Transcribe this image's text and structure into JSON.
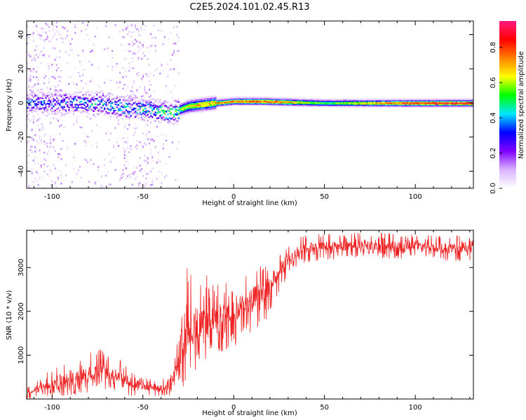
{
  "title": "C2E5.2024.101.02.45.R13",
  "chart_data": [
    {
      "type": "heatmap",
      "xlabel": "Height of straight line (km)",
      "ylabel": "Frequency (Hz)",
      "xlim": [
        -114,
        132
      ],
      "ylim": [
        -50,
        48
      ],
      "x_ticks": [
        -100,
        -50,
        0,
        50,
        100
      ],
      "y_ticks": [
        -40,
        -20,
        0,
        20,
        40
      ],
      "colorbar": {
        "label": "Normalized spectral amplitude",
        "range": [
          0,
          0.95
        ],
        "ticks": [
          0.0,
          0.2,
          0.4,
          0.6,
          0.8
        ],
        "colormap": [
          "#ffffff",
          "#d9b3ff",
          "#8000ff",
          "#0000ff",
          "#00e6ff",
          "#00ff00",
          "#ffff00",
          "#ff8000",
          "#ff0000",
          "#ff1a80"
        ]
      },
      "ridge_frequency_hz": [
        {
          "x": -100,
          "y": 0
        },
        {
          "x": -75,
          "y": 0
        },
        {
          "x": -60,
          "y": -3
        },
        {
          "x": -45,
          "y": -4
        },
        {
          "x": -35,
          "y": -6
        },
        {
          "x": -25,
          "y": -2
        },
        {
          "x": -10,
          "y": 0
        },
        {
          "x": 0,
          "y": 1
        },
        {
          "x": 15,
          "y": 1
        },
        {
          "x": 50,
          "y": 0
        },
        {
          "x": 100,
          "y": 0
        },
        {
          "x": 130,
          "y": 0
        }
      ],
      "ridge_amplitude": [
        {
          "x": -100,
          "y": 0.35
        },
        {
          "x": -60,
          "y": 0.4
        },
        {
          "x": -40,
          "y": 0.45
        },
        {
          "x": -20,
          "y": 0.7
        },
        {
          "x": 0,
          "y": 0.8
        },
        {
          "x": 20,
          "y": 0.85
        },
        {
          "x": 50,
          "y": 0.55
        },
        {
          "x": 100,
          "y": 0.85
        },
        {
          "x": 130,
          "y": 0.9
        }
      ]
    },
    {
      "type": "line",
      "xlabel": "Height of straight line (km)",
      "ylabel": "SNR (10 * v/v)",
      "xlim": [
        -114,
        132
      ],
      "ylim": [
        0,
        3850
      ],
      "x_ticks": [
        -100,
        -50,
        0,
        50,
        100
      ],
      "y_ticks": [
        1000,
        2000,
        3000
      ],
      "series": [
        {
          "color": "#ee2222",
          "envelope": [
            {
              "x": -114,
              "low": 0,
              "mid": 150,
              "high": 250
            },
            {
              "x": -100,
              "low": 50,
              "mid": 300,
              "high": 700
            },
            {
              "x": -85,
              "low": 100,
              "mid": 500,
              "high": 900
            },
            {
              "x": -75,
              "low": 200,
              "mid": 650,
              "high": 1200
            },
            {
              "x": -65,
              "low": 150,
              "mid": 550,
              "high": 1000
            },
            {
              "x": -55,
              "low": 50,
              "mid": 350,
              "high": 600
            },
            {
              "x": -45,
              "low": 50,
              "mid": 250,
              "high": 450
            },
            {
              "x": -35,
              "low": 50,
              "mid": 250,
              "high": 500
            },
            {
              "x": -30,
              "low": 200,
              "mid": 900,
              "high": 1600
            },
            {
              "x": -25,
              "low": 300,
              "mid": 1600,
              "high": 3200
            },
            {
              "x": -20,
              "low": 400,
              "mid": 1600,
              "high": 2800
            },
            {
              "x": -15,
              "low": 600,
              "mid": 1700,
              "high": 3000
            },
            {
              "x": -10,
              "low": 1000,
              "mid": 1850,
              "high": 2600
            },
            {
              "x": 0,
              "low": 1200,
              "mid": 2000,
              "high": 2700
            },
            {
              "x": 10,
              "low": 1500,
              "mid": 2300,
              "high": 3000
            },
            {
              "x": 20,
              "low": 1900,
              "mid": 2600,
              "high": 3100
            },
            {
              "x": 25,
              "low": 2400,
              "mid": 2900,
              "high": 3400
            },
            {
              "x": 30,
              "low": 2800,
              "mid": 3200,
              "high": 3600
            },
            {
              "x": 40,
              "low": 3100,
              "mid": 3450,
              "high": 3750
            },
            {
              "x": 60,
              "low": 3200,
              "mid": 3500,
              "high": 3800
            },
            {
              "x": 80,
              "low": 3200,
              "mid": 3500,
              "high": 3800
            },
            {
              "x": 100,
              "low": 3200,
              "mid": 3500,
              "high": 3750
            },
            {
              "x": 115,
              "low": 3150,
              "mid": 3450,
              "high": 3750
            },
            {
              "x": 132,
              "low": 3150,
              "mid": 3450,
              "high": 3700
            }
          ]
        }
      ]
    }
  ]
}
